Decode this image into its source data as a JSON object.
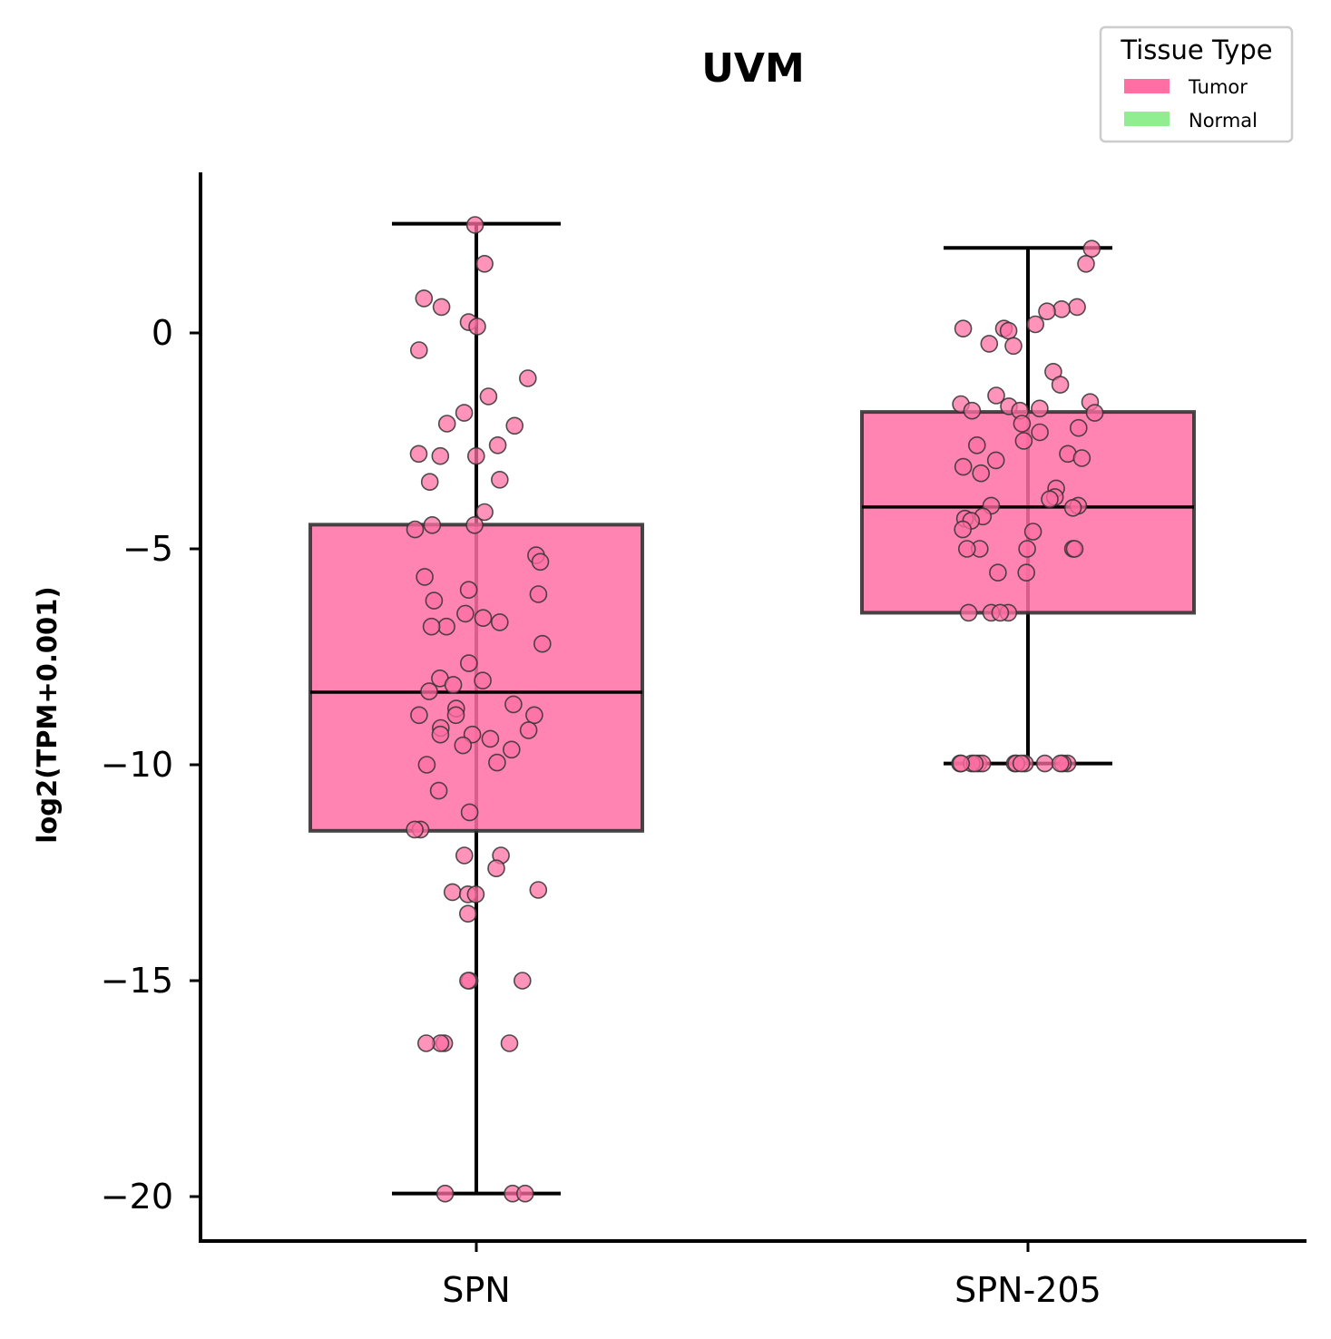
{
  "chart_data": {
    "type": "box",
    "title": "UVM",
    "xlabel": "",
    "ylabel": "log2(TPM+0.001)",
    "ylim": [
      -21,
      3.7
    ],
    "yticks": [
      0,
      -5,
      -10,
      -15,
      -20
    ],
    "ytick_labels": [
      "0",
      "−5",
      "−10",
      "−15",
      "−20"
    ],
    "categories": [
      "SPN",
      "SPN-205"
    ],
    "legend": {
      "title": "Tissue Type",
      "position": "top-right",
      "items": [
        {
          "label": "Tumor",
          "color": "#ff6fa3"
        },
        {
          "label": "Normal",
          "color": "#90ee90"
        }
      ]
    },
    "series": [
      {
        "category": "SPN",
        "tissue": "Tumor",
        "box": {
          "whisker_low": -19.93,
          "q1": -11.53,
          "median": -8.32,
          "q3": -4.44,
          "whisker_high": 2.53
        },
        "points": [
          2.5,
          1.6,
          0.8,
          0.6,
          0.25,
          0.15,
          -0.4,
          -1.05,
          -1.47,
          -1.85,
          -2.1,
          -2.15,
          -2.6,
          -2.8,
          -2.85,
          -2.85,
          -3.4,
          -3.45,
          -4.15,
          -4.45,
          -4.45,
          -4.55,
          -5.15,
          -5.3,
          -5.65,
          -5.95,
          -6.05,
          -6.2,
          -6.5,
          -6.6,
          -6.7,
          -6.8,
          -6.8,
          -7.2,
          -7.65,
          -8.0,
          -8.05,
          -8.15,
          -8.3,
          -8.6,
          -8.7,
          -8.85,
          -8.85,
          -8.85,
          -9.15,
          -9.2,
          -9.3,
          -9.3,
          -9.4,
          -9.55,
          -9.65,
          -9.95,
          -10.0,
          -10.6,
          -11.1,
          -11.5,
          -11.5,
          -12.1,
          -12.1,
          -12.4,
          -12.9,
          -12.95,
          -13.0,
          -13.0,
          -13.45,
          -15.0,
          -15.0,
          -15.0,
          -16.45,
          -16.45,
          -16.45,
          -16.45,
          -19.93,
          -19.93,
          -19.93
        ]
      },
      {
        "category": "SPN-205",
        "tissue": "Tumor",
        "box": {
          "whisker_low": -9.97,
          "q1": -6.48,
          "median": -4.03,
          "q3": -1.83,
          "whisker_high": 1.97
        },
        "points": [
          1.95,
          1.6,
          0.6,
          0.55,
          0.5,
          0.2,
          0.1,
          0.1,
          0.05,
          -0.25,
          -0.3,
          -0.9,
          -1.2,
          -1.45,
          -1.6,
          -1.65,
          -1.7,
          -1.75,
          -1.8,
          -1.8,
          -1.85,
          -2.1,
          -2.2,
          -2.3,
          -2.5,
          -2.6,
          -2.8,
          -2.9,
          -2.95,
          -3.1,
          -3.25,
          -3.6,
          -3.8,
          -3.85,
          -4.0,
          -4.0,
          -4.05,
          -4.25,
          -4.3,
          -4.35,
          -4.55,
          -4.6,
          -5.0,
          -5.0,
          -5.0,
          -5.0,
          -5.0,
          -5.55,
          -5.55,
          -6.48,
          -6.48,
          -6.48,
          -6.48,
          -9.97,
          -9.97,
          -9.97,
          -9.97,
          -9.97,
          -9.97,
          -9.97,
          -9.97,
          -9.97,
          -9.97,
          -9.97,
          -9.97,
          -9.97,
          -9.97
        ]
      }
    ]
  }
}
